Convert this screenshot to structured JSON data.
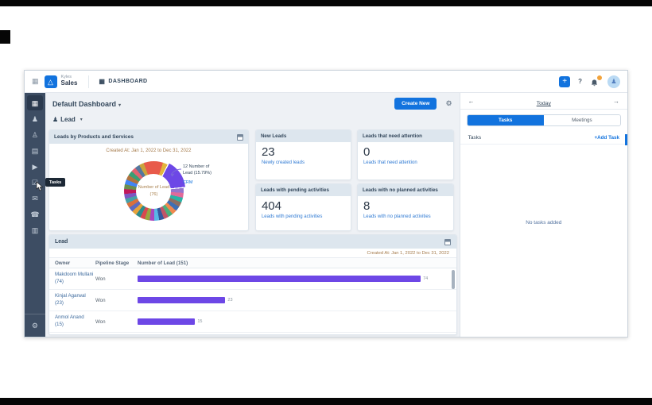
{
  "topbar": {
    "workspace": "Kyles",
    "app": "Sales",
    "nav_label": "DASHBOARD"
  },
  "icons": {
    "apps_grid": "▦",
    "nav_grid": "▦",
    "logo_triangle": "△",
    "plus": "+",
    "help": "?",
    "avatar_person": "♟",
    "caret_down": "▾",
    "filter_person": "♟",
    "gear": "⚙",
    "arrow_left": "←",
    "arrow_right": "→"
  },
  "sidebar": {
    "tooltip": "Tasks",
    "items": [
      {
        "name": "dashboard",
        "glyph": "▦",
        "active": true
      },
      {
        "name": "contacts",
        "glyph": "♟"
      },
      {
        "name": "leads",
        "glyph": "♙"
      },
      {
        "name": "companies",
        "glyph": "▤"
      },
      {
        "name": "pipelines",
        "glyph": "▶"
      },
      {
        "name": "tasks",
        "glyph": "☑"
      },
      {
        "name": "email",
        "glyph": "✉"
      },
      {
        "name": "phone",
        "glyph": "☎"
      },
      {
        "name": "reports",
        "glyph": "▥"
      }
    ],
    "settings_glyph": "⚙"
  },
  "dashboard": {
    "title": "Default Dashboard",
    "create_button": "Create New",
    "module_filter": "Lead",
    "donut_card": {
      "title": "Leads by Products and Services",
      "subtitle": "Created At: Jan 1, 2022 to Dec 31, 2022",
      "center_line1": "Number of Lead",
      "center_line2": "(76)",
      "callout_line1": "12 Number of",
      "callout_line2": "Lead (15.79%)",
      "callout_label": "CRM"
    },
    "kpis": [
      {
        "title": "New Leads",
        "value": "23",
        "caption": "Newly created leads"
      },
      {
        "title": "Leads that need attention",
        "value": "0",
        "caption": "Leads that need attention"
      },
      {
        "title": "Leads with pending activities",
        "value": "404",
        "caption": "Leads with pending activities"
      },
      {
        "title": "Leads with no planned activities",
        "value": "8",
        "caption": "Leads with no planned activities"
      }
    ],
    "table": {
      "title": "Lead",
      "subtitle": "Created At: Jan 1, 2022 to Dec 31, 2022",
      "columns": [
        "Owner",
        "Pipeline Stage",
        "Number of Lead (151)"
      ],
      "rows": [
        {
          "name": "Makdoom Mullani",
          "count": "(74)",
          "stage": "Won",
          "bar_label": "74"
        },
        {
          "name": "Kinjal Agarwal",
          "count": "(23)",
          "stage": "Won",
          "bar_label": "23"
        },
        {
          "name": "Anmol Anand",
          "count": "(15)",
          "stage": "Won",
          "bar_label": "15"
        }
      ]
    }
  },
  "activity_panel": {
    "date_label": "Today",
    "tabs": [
      "Tasks",
      "Meetings"
    ],
    "active_tab": "Tasks",
    "section_label": "Tasks",
    "add_task": "+Add Task",
    "empty_text": "No tasks added"
  },
  "colors": {
    "accent_blue": "#1273de",
    "bar_purple": "#6d47e6",
    "sidebar_navy": "#3d4d63",
    "card_header": "#dde6ee",
    "badge_orange": "#f2a33c",
    "subtitle_brown": "#a57b4c"
  },
  "chart_data": [
    {
      "type": "pie",
      "donut": true,
      "title": "Leads by Products and Services",
      "subtitle": "Created At: Jan 1, 2022 to Dec 31, 2022",
      "center_label": "Number of Lead",
      "center_total": 76,
      "highlighted_slice": {
        "label": "CRM",
        "value": 12,
        "percent": "15.79%"
      },
      "start_angle_deg": -20,
      "segments": [
        {
          "value": 8,
          "color": "#e85a4a"
        },
        {
          "value": 2,
          "color": "#e3b53c"
        },
        {
          "label": "CRM",
          "value": 12,
          "color": "#6d47e6",
          "exploded": true
        },
        {
          "value": 2,
          "color": "#9575cd"
        },
        {
          "value": 2,
          "color": "#e06a9a"
        },
        {
          "value": 2,
          "color": "#2ab3a6"
        },
        {
          "value": 2,
          "color": "#8d6e63"
        },
        {
          "value": 2,
          "color": "#3f6fb5"
        },
        {
          "value": 2,
          "color": "#f0894f"
        },
        {
          "value": 2,
          "color": "#4caf7d"
        },
        {
          "value": 2,
          "color": "#c05568"
        },
        {
          "value": 2,
          "color": "#35589e"
        },
        {
          "value": 2,
          "color": "#58b7e6"
        },
        {
          "value": 2,
          "color": "#ab47bc"
        },
        {
          "value": 2,
          "color": "#99a63f"
        },
        {
          "value": 2,
          "color": "#d8484f"
        },
        {
          "value": 2,
          "color": "#2e8b8b"
        },
        {
          "value": 2,
          "color": "#e6a33c"
        },
        {
          "value": 2,
          "color": "#5c6bc0"
        },
        {
          "value": 2,
          "color": "#d9703c"
        },
        {
          "value": 2,
          "color": "#47a0a8"
        },
        {
          "value": 2,
          "color": "#7e57c2"
        },
        {
          "value": 2,
          "color": "#c2185b"
        },
        {
          "value": 2,
          "color": "#6b8e4e"
        },
        {
          "value": 2,
          "color": "#4285f4"
        },
        {
          "value": 2,
          "color": "#b0733f"
        },
        {
          "value": 2,
          "color": "#3a9e74"
        },
        {
          "value": 2,
          "color": "#e2636f"
        },
        {
          "value": 2,
          "color": "#54779e"
        },
        {
          "value": 2,
          "color": "#caa43d"
        }
      ]
    },
    {
      "type": "bar",
      "orientation": "horizontal",
      "title": "Lead",
      "subtitle": "Created At: Jan 1, 2022 to Dec 31, 2022",
      "categories": [
        "Makdoom Mullani",
        "Kinjal Agarwal",
        "Anmol Anand"
      ],
      "series": [
        {
          "name": "Won",
          "values": [
            74,
            23,
            15
          ]
        }
      ],
      "xmax": 80,
      "bar_color": "#6d47e6"
    }
  ]
}
